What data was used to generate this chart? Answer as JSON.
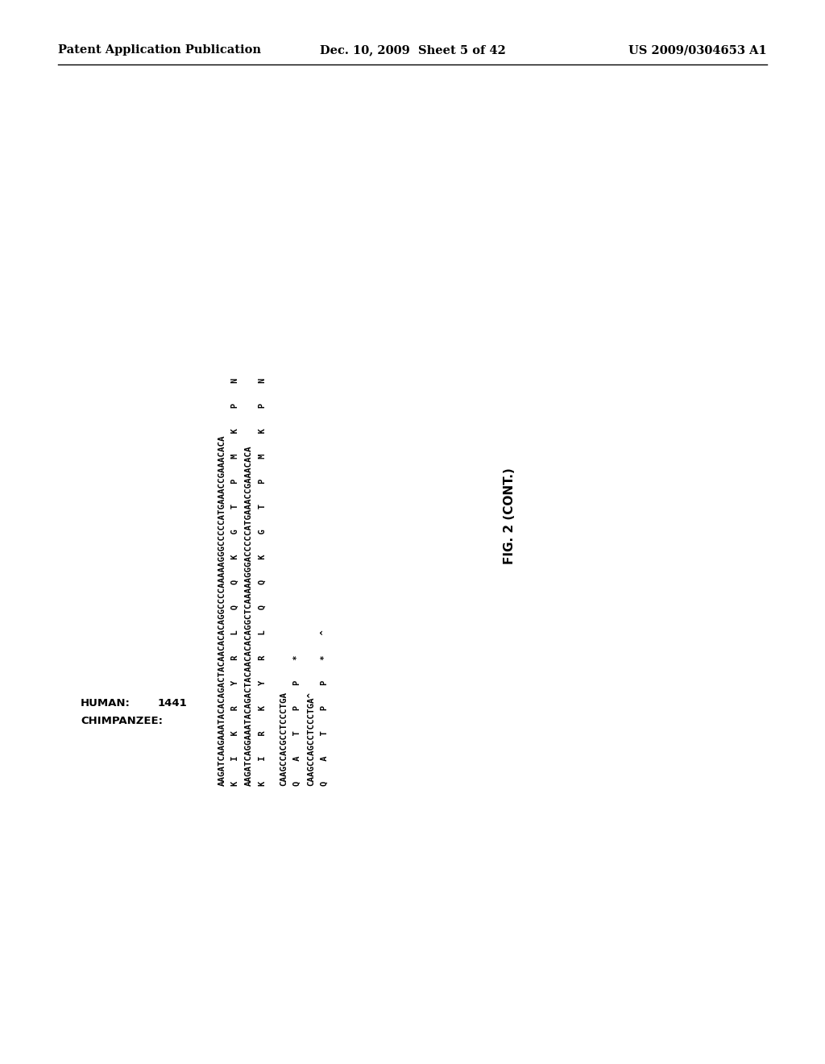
{
  "background_color": "#ffffff",
  "header_left": "Patent Application Publication",
  "header_center": "Dec. 10, 2009  Sheet 5 of 42",
  "header_right": "US 2009/0304653 A1",
  "human_label": "HUMAN:",
  "human_number": "1441",
  "chimp_label": "CHIMPANZEE:",
  "human_seq1": "AAGATCAAGAAATACACAGACTACAACACACAGGCCCCAAAAAGGGCCCCCATGAAACCGAAACACA",
  "human_aa1": "K    I    K    R    Y    R    L    Q    Q    K    G    T    P    M    K    P    N",
  "chimp_seq1": "AAGATCAGGAAATACAGACTACAACACACAGGCTCAAAAAGGGACCCCCATGAAACCGAAACACA",
  "chimp_aa1": "K    I    R    K    Y    R    L    Q    Q    K    G    T    P    M    K    P    N",
  "human_seq2": "CAAGCCACGCCTCCCTGA",
  "human_aa2": "Q    A    T    P    P    *",
  "chimp_seq2": "CAAGCCAGCCTCCCTGA^",
  "chimp_aa2": "Q    A    T    P    P    *    ^",
  "fig_label": "FIG. 2 (CONT.)",
  "header_fontsize": 10.5,
  "seq_fontsize": 7.8,
  "aa_fontsize": 7.5,
  "label_fontsize": 9.5,
  "fig_fontsize": 11
}
